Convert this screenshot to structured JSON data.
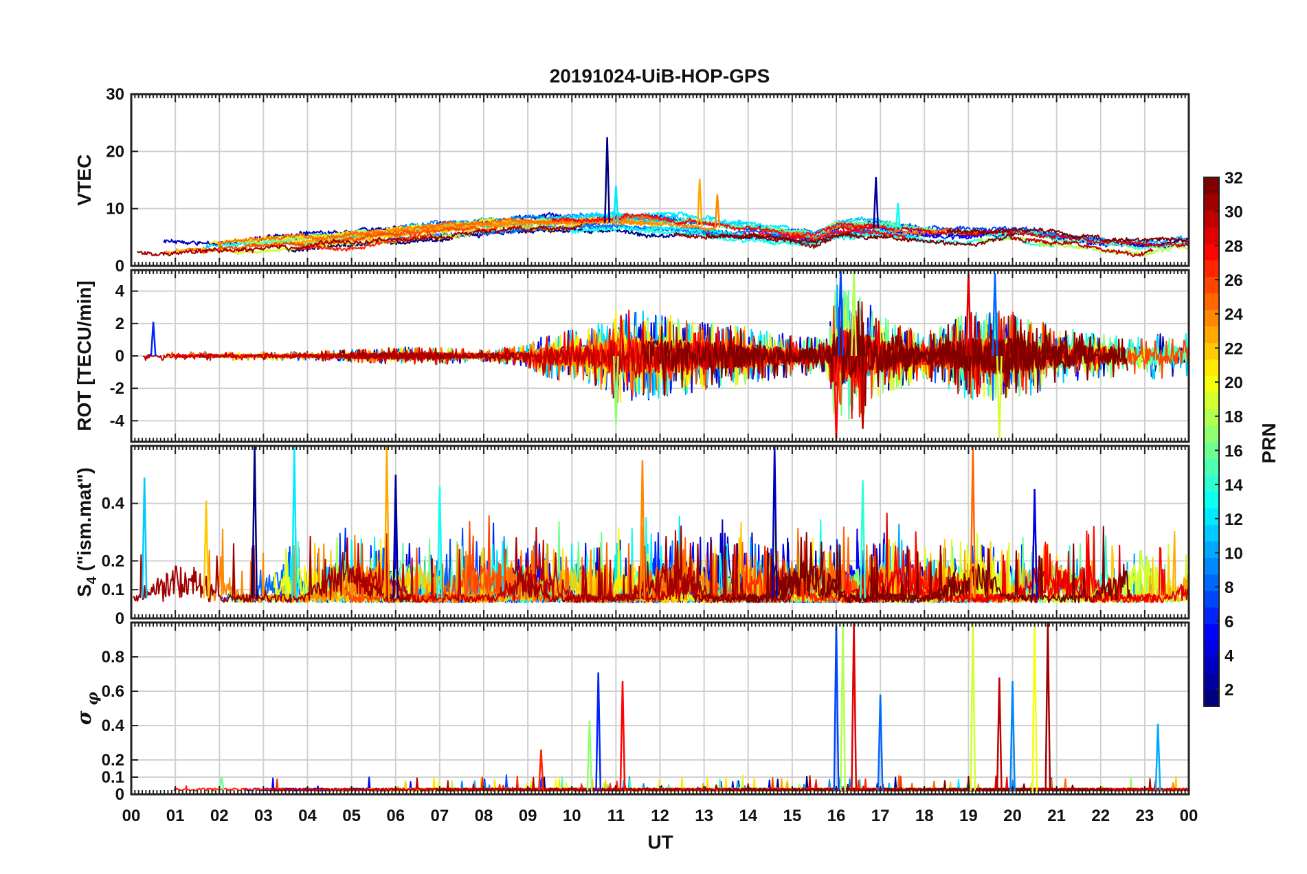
{
  "chart_data": {
    "type": "line",
    "title": "20191024-UiB-HOP-GPS",
    "xlabel": "UT",
    "x_range": [
      0,
      24
    ],
    "x_tick_labels": [
      "00",
      "01",
      "02",
      "03",
      "04",
      "05",
      "06",
      "07",
      "08",
      "09",
      "10",
      "11",
      "12",
      "13",
      "14",
      "15",
      "16",
      "17",
      "18",
      "19",
      "20",
      "21",
      "22",
      "23",
      "00"
    ],
    "grid": true,
    "colorbar": {
      "label": "PRN",
      "range": [
        1,
        32
      ],
      "colormap": "jet",
      "tick_labels": [
        "2",
        "4",
        "6",
        "8",
        "10",
        "12",
        "14",
        "16",
        "18",
        "20",
        "22",
        "24",
        "26",
        "28",
        "30",
        "32"
      ],
      "placement": "right"
    },
    "panels": [
      {
        "id": "vtec",
        "ylabel": "VTEC",
        "ylim": [
          0,
          30
        ],
        "y_ticks": [
          0,
          10,
          20,
          30
        ],
        "y_tick_labels": [
          "0",
          "10",
          "20",
          "30"
        ],
        "baseline_profile": [
          [
            0,
            2.8
          ],
          [
            2,
            3.2
          ],
          [
            4,
            4.2
          ],
          [
            6,
            5.6
          ],
          [
            8,
            6.8
          ],
          [
            9.5,
            7.2
          ],
          [
            11,
            7.6
          ],
          [
            12.5,
            7.0
          ],
          [
            14,
            6.2
          ],
          [
            15.5,
            4.8
          ],
          [
            16,
            6.5
          ],
          [
            17,
            6.6
          ],
          [
            18,
            5.6
          ],
          [
            19,
            5.0
          ],
          [
            20,
            5.8
          ],
          [
            21,
            4.8
          ],
          [
            22,
            3.8
          ],
          [
            23,
            3.2
          ],
          [
            24,
            4.0
          ]
        ],
        "peaks": [
          [
            10.8,
            22.5
          ],
          [
            11.0,
            14.0
          ],
          [
            12.9,
            15.2
          ],
          [
            16.9,
            15.5
          ],
          [
            17.4,
            11.0
          ],
          [
            13.3,
            12.5
          ]
        ]
      },
      {
        "id": "rot",
        "ylabel": "ROT [TECU/min]",
        "ylim": [
          -5.3,
          5.3
        ],
        "y_ticks": [
          -4,
          -2,
          0,
          2,
          4
        ],
        "y_tick_labels": [
          "-4",
          "-2",
          "0",
          "2",
          "4"
        ],
        "amplitude_profile": [
          [
            0,
            0.15
          ],
          [
            4,
            0.15
          ],
          [
            6,
            0.3
          ],
          [
            7,
            0.3
          ],
          [
            8,
            0.2
          ],
          [
            9,
            0.4
          ],
          [
            9.5,
            0.8
          ],
          [
            10.5,
            1.0
          ],
          [
            11,
            1.6
          ],
          [
            12,
            1.5
          ],
          [
            13,
            1.2
          ],
          [
            14,
            1.0
          ],
          [
            15,
            0.7
          ],
          [
            15.8,
            0.6
          ],
          [
            16,
            2.6
          ],
          [
            16.5,
            2.2
          ],
          [
            17,
            1.4
          ],
          [
            18,
            0.8
          ],
          [
            19,
            1.5
          ],
          [
            20,
            1.6
          ],
          [
            21,
            1.0
          ],
          [
            22,
            0.8
          ],
          [
            23,
            0.8
          ],
          [
            24,
            0.8
          ]
        ],
        "peaks": [
          [
            0.5,
            2.1
          ],
          [
            11.0,
            -4.3
          ],
          [
            16.0,
            -5.3
          ],
          [
            16.1,
            5.3
          ],
          [
            16.4,
            5.3
          ],
          [
            19.0,
            5.3
          ],
          [
            19.6,
            5.1
          ],
          [
            19.7,
            -5.1
          ],
          [
            16.6,
            -4.5
          ]
        ]
      },
      {
        "id": "s4",
        "ylabel": "S4 (\"ism.mat\")",
        "ylim": [
          0,
          0.6
        ],
        "y_ticks": [
          0,
          0.1,
          0.2,
          0.4
        ],
        "y_tick_labels": [
          "0",
          "0.1",
          "0.2",
          "0.4"
        ],
        "floor_profile": [
          [
            0,
            0.07
          ],
          [
            24,
            0.07
          ]
        ],
        "peaks": [
          [
            0.3,
            0.49
          ],
          [
            1.7,
            0.41
          ],
          [
            2.8,
            0.6
          ],
          [
            3.7,
            0.6
          ],
          [
            5.8,
            0.6
          ],
          [
            6.0,
            0.5
          ],
          [
            7.0,
            0.46
          ],
          [
            11.6,
            0.55
          ],
          [
            14.6,
            0.6
          ],
          [
            16.6,
            0.48
          ],
          [
            19.1,
            0.6
          ],
          [
            20.5,
            0.45
          ]
        ]
      },
      {
        "id": "sigma_phi",
        "ylabel": "σφ",
        "ylim": [
          0,
          1.0
        ],
        "y_ticks": [
          0,
          0.1,
          0.2,
          0.4,
          0.6,
          0.8
        ],
        "y_tick_labels": [
          "0",
          "0.1",
          "0.2",
          "0.4",
          "0.6",
          "0.8"
        ],
        "floor_profile": [
          [
            0,
            0.02
          ],
          [
            24,
            0.02
          ]
        ],
        "peaks": [
          [
            2.05,
            0.1
          ],
          [
            9.3,
            0.26
          ],
          [
            10.6,
            0.71
          ],
          [
            10.4,
            0.43
          ],
          [
            11.15,
            0.66
          ],
          [
            16.0,
            1.0
          ],
          [
            16.15,
            1.0
          ],
          [
            16.4,
            1.0
          ],
          [
            17.0,
            0.58
          ],
          [
            19.1,
            1.0
          ],
          [
            19.7,
            0.68
          ],
          [
            20.0,
            0.66
          ],
          [
            20.5,
            1.0
          ],
          [
            20.8,
            1.0
          ],
          [
            23.3,
            0.41
          ]
        ]
      }
    ]
  }
}
